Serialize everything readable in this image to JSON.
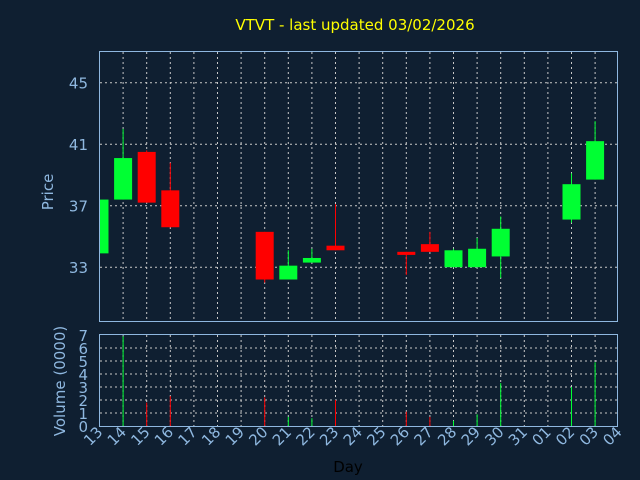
{
  "colors": {
    "background": "#0f1f31",
    "up": "#00ff33",
    "down": "#ff0000",
    "axis_text": "#8fb8e0",
    "title": "#ffff00",
    "grid": "#c8c8c8"
  },
  "chart_data": {
    "type": "candlestick",
    "title": "VTVT - last updated 03/02/2026",
    "xlabel": "Day",
    "price_ylabel": "Price",
    "volume_ylabel": "Volume (0000)",
    "price_ylim": [
      29.5,
      47
    ],
    "price_ticks": [
      33,
      37,
      41,
      45
    ],
    "volume_ylim": [
      0,
      7
    ],
    "volume_ticks": [
      0,
      1,
      2,
      3,
      4,
      5,
      6,
      7
    ],
    "grid": true,
    "x_labels": [
      "13",
      "14",
      "15",
      "16",
      "17",
      "18",
      "19",
      "20",
      "21",
      "22",
      "23",
      "24",
      "25",
      "26",
      "27",
      "28",
      "29",
      "30",
      "31",
      "01",
      "02",
      "03",
      "04"
    ],
    "candles": [
      {
        "day": "13",
        "open": 33.9,
        "high": 37.4,
        "low": 33.9,
        "close": 37.4,
        "volume": 0
      },
      {
        "day": "14",
        "open": 37.4,
        "high": 42.0,
        "low": 37.4,
        "close": 40.1,
        "volume": 6.9
      },
      {
        "day": "15",
        "open": 40.5,
        "high": 40.6,
        "low": 37.2,
        "close": 37.2,
        "volume": 1.8
      },
      {
        "day": "16",
        "open": 38.0,
        "high": 39.8,
        "low": 35.6,
        "close": 35.6,
        "volume": 2.3
      },
      {
        "day": "20",
        "open": 35.3,
        "high": 35.3,
        "low": 32.0,
        "close": 32.2,
        "volume": 2.2
      },
      {
        "day": "21",
        "open": 32.2,
        "high": 34.1,
        "low": 32.2,
        "close": 33.1,
        "volume": 0.7
      },
      {
        "day": "22",
        "open": 33.3,
        "high": 34.2,
        "low": 33.3,
        "close": 33.6,
        "volume": 0.6
      },
      {
        "day": "23",
        "open": 34.4,
        "high": 37.1,
        "low": 34.1,
        "close": 34.1,
        "volume": 2.0
      },
      {
        "day": "26",
        "open": 34.0,
        "high": 34.0,
        "low": 32.5,
        "close": 33.8,
        "volume": 1.1
      },
      {
        "day": "27",
        "open": 34.5,
        "high": 35.3,
        "low": 34.0,
        "close": 34.0,
        "volume": 0.7
      },
      {
        "day": "28",
        "open": 33.0,
        "high": 34.2,
        "low": 33.0,
        "close": 34.1,
        "volume": 0.4
      },
      {
        "day": "29",
        "open": 33.0,
        "high": 34.9,
        "low": 33.0,
        "close": 34.2,
        "volume": 0.9
      },
      {
        "day": "30",
        "open": 33.7,
        "high": 36.3,
        "low": 32.3,
        "close": 35.5,
        "volume": 3.3
      },
      {
        "day": "02",
        "open": 36.1,
        "high": 39.1,
        "low": 35.9,
        "close": 38.4,
        "volume": 3.0
      },
      {
        "day": "03",
        "open": 38.7,
        "high": 42.5,
        "low": 38.7,
        "close": 41.2,
        "volume": 4.9
      }
    ]
  }
}
